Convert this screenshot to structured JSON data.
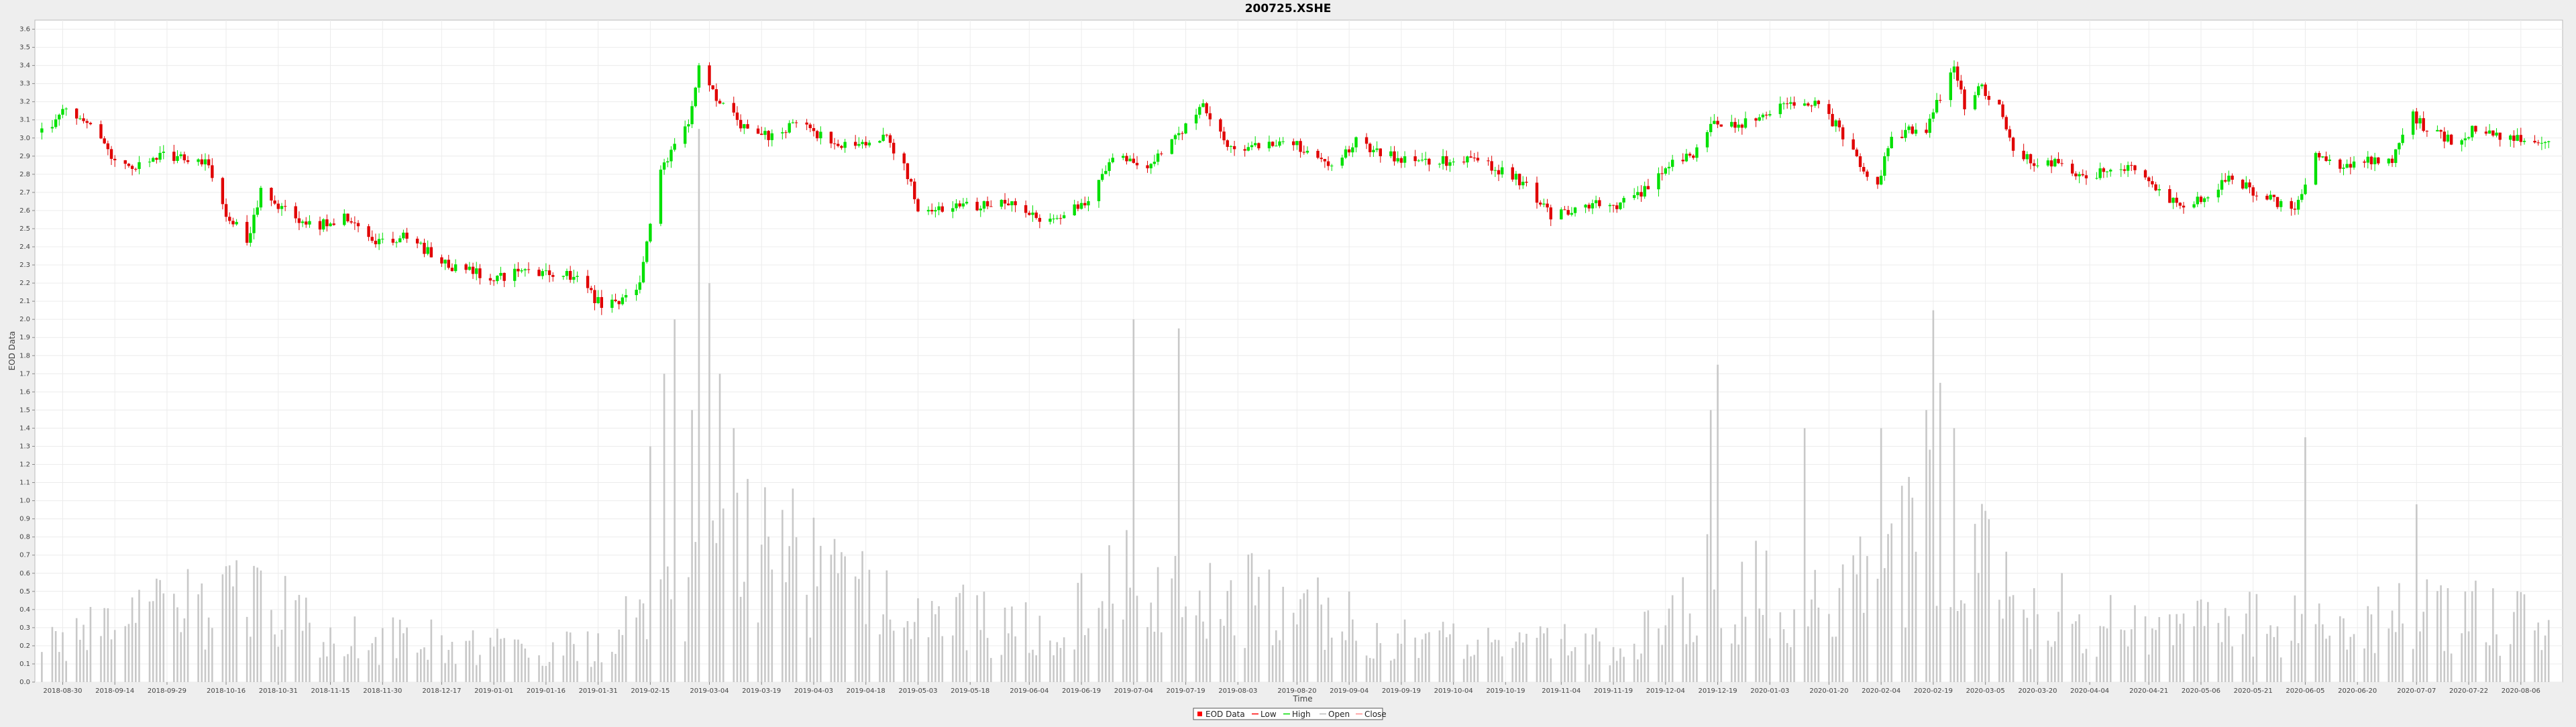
{
  "chart_data": {
    "type": "candlestick",
    "title": "200725.XSHE",
    "xlabel": "Time",
    "ylabel": "EOD Data",
    "ylim": [
      0.0,
      3.65
    ],
    "ytick_step": 0.1,
    "grid": true,
    "legend_position": "bottom-center",
    "x_tick_labels": [
      "2018-08-30",
      "2018-09-14",
      "2018-09-29",
      "2018-10-16",
      "2018-10-31",
      "2018-11-15",
      "2018-11-30",
      "2018-12-17",
      "2019-01-01",
      "2019-01-16",
      "2019-01-31",
      "2019-02-15",
      "2019-03-04",
      "2019-03-19",
      "2019-04-03",
      "2019-04-18",
      "2019-05-03",
      "2019-05-18",
      "2019-06-04",
      "2019-06-19",
      "2019-07-04",
      "2019-07-19",
      "2019-08-03",
      "2019-08-20",
      "2019-09-04",
      "2019-09-19",
      "2019-10-04",
      "2019-10-19",
      "2019-11-04",
      "2019-11-19",
      "2019-12-04",
      "2019-12-19",
      "2020-01-03",
      "2020-01-20",
      "2020-02-04",
      "2020-02-19",
      "2020-03-05",
      "2020-03-20",
      "2020-04-04",
      "2020-04-21",
      "2020-05-06",
      "2020-05-21",
      "2020-06-05",
      "2020-06-20",
      "2020-07-07",
      "2020-07-22",
      "2020-08-06"
    ],
    "legend": [
      {
        "name": "EOD Data",
        "color": "#ff0000",
        "kind": "box"
      },
      {
        "name": "Low",
        "color": "#ff0000",
        "kind": "line"
      },
      {
        "name": "High",
        "color": "#00dd00",
        "kind": "line"
      },
      {
        "name": "Open",
        "color": "#bbbbbb",
        "kind": "line"
      },
      {
        "name": "Close",
        "color": "#ff8c8c",
        "kind": "line"
      }
    ],
    "colors": {
      "up": "#00e000",
      "down": "#e00000",
      "volume": "#c8c8c8",
      "grid": "#ececec"
    },
    "anchors": [
      {
        "date": "2018-08-24",
        "price": 3.03
      },
      {
        "date": "2018-08-31",
        "price": 3.16
      },
      {
        "date": "2018-09-07",
        "price": 3.06
      },
      {
        "date": "2018-09-12",
        "price": 2.92
      },
      {
        "date": "2018-09-17",
        "price": 2.83
      },
      {
        "date": "2018-09-26",
        "price": 2.9
      },
      {
        "date": "2018-10-10",
        "price": 2.88
      },
      {
        "date": "2018-10-16",
        "price": 2.58
      },
      {
        "date": "2018-10-22",
        "price": 2.44
      },
      {
        "date": "2018-10-26",
        "price": 2.7
      },
      {
        "date": "2018-11-05",
        "price": 2.55
      },
      {
        "date": "2018-11-12",
        "price": 2.52
      },
      {
        "date": "2018-11-20",
        "price": 2.57
      },
      {
        "date": "2018-11-28",
        "price": 2.44
      },
      {
        "date": "2018-12-07",
        "price": 2.45
      },
      {
        "date": "2018-12-20",
        "price": 2.28
      },
      {
        "date": "2019-01-03",
        "price": 2.23
      },
      {
        "date": "2019-01-10",
        "price": 2.28
      },
      {
        "date": "2019-01-24",
        "price": 2.23
      },
      {
        "date": "2019-02-01",
        "price": 2.08
      },
      {
        "date": "2019-02-11",
        "price": 2.14
      },
      {
        "date": "2019-02-14",
        "price": 2.42
      },
      {
        "date": "2019-02-18",
        "price": 2.8
      },
      {
        "date": "2019-02-22",
        "price": 2.95
      },
      {
        "date": "2019-02-26",
        "price": 3.08
      },
      {
        "date": "2019-03-01",
        "price": 3.38
      },
      {
        "date": "2019-03-07",
        "price": 3.18
      },
      {
        "date": "2019-03-15",
        "price": 3.05
      },
      {
        "date": "2019-03-22",
        "price": 3.0
      },
      {
        "date": "2019-03-29",
        "price": 3.08
      },
      {
        "date": "2019-04-10",
        "price": 2.97
      },
      {
        "date": "2019-04-19",
        "price": 2.95
      },
      {
        "date": "2019-04-23",
        "price": 3.02
      },
      {
        "date": "2019-04-29",
        "price": 2.84
      },
      {
        "date": "2019-05-03",
        "price": 2.62
      },
      {
        "date": "2019-05-20",
        "price": 2.62
      },
      {
        "date": "2019-05-31",
        "price": 2.65
      },
      {
        "date": "2019-06-06",
        "price": 2.55
      },
      {
        "date": "2019-06-14",
        "price": 2.58
      },
      {
        "date": "2019-06-21",
        "price": 2.65
      },
      {
        "date": "2019-06-28",
        "price": 2.92
      },
      {
        "date": "2019-07-08",
        "price": 2.82
      },
      {
        "date": "2019-07-16",
        "price": 3.0
      },
      {
        "date": "2019-07-24",
        "price": 3.18
      },
      {
        "date": "2019-08-01",
        "price": 2.95
      },
      {
        "date": "2019-08-09",
        "price": 2.95
      },
      {
        "date": "2019-08-16",
        "price": 3.0
      },
      {
        "date": "2019-08-23",
        "price": 2.92
      },
      {
        "date": "2019-08-30",
        "price": 2.83
      },
      {
        "date": "2019-09-06",
        "price": 2.98
      },
      {
        "date": "2019-09-16",
        "price": 2.9
      },
      {
        "date": "2019-09-27",
        "price": 2.87
      },
      {
        "date": "2019-10-11",
        "price": 2.88
      },
      {
        "date": "2019-10-18",
        "price": 2.82
      },
      {
        "date": "2019-10-24",
        "price": 2.75
      },
      {
        "date": "2019-11-01",
        "price": 2.57
      },
      {
        "date": "2019-11-12",
        "price": 2.63
      },
      {
        "date": "2019-11-19",
        "price": 2.62
      },
      {
        "date": "2019-11-26",
        "price": 2.68
      },
      {
        "date": "2019-12-06",
        "price": 2.86
      },
      {
        "date": "2019-12-13",
        "price": 2.93
      },
      {
        "date": "2019-12-17",
        "price": 3.1
      },
      {
        "date": "2019-12-23",
        "price": 3.07
      },
      {
        "date": "2019-12-31",
        "price": 3.1
      },
      {
        "date": "2020-01-08",
        "price": 3.18
      },
      {
        "date": "2020-01-15",
        "price": 3.2
      },
      {
        "date": "2020-01-23",
        "price": 3.05
      },
      {
        "date": "2020-02-03",
        "price": 2.72
      },
      {
        "date": "2020-02-06",
        "price": 2.97
      },
      {
        "date": "2020-02-12",
        "price": 3.05
      },
      {
        "date": "2020-02-17",
        "price": 3.05
      },
      {
        "date": "2020-02-21",
        "price": 3.23
      },
      {
        "date": "2020-02-25",
        "price": 3.42
      },
      {
        "date": "2020-02-28",
        "price": 3.18
      },
      {
        "date": "2020-03-04",
        "price": 3.28
      },
      {
        "date": "2020-03-09",
        "price": 3.18
      },
      {
        "date": "2020-03-13",
        "price": 2.95
      },
      {
        "date": "2020-03-20",
        "price": 2.85
      },
      {
        "date": "2020-03-27",
        "price": 2.88
      },
      {
        "date": "2020-04-03",
        "price": 2.75
      },
      {
        "date": "2020-04-10",
        "price": 2.85
      },
      {
        "date": "2020-04-17",
        "price": 2.82
      },
      {
        "date": "2020-04-24",
        "price": 2.72
      },
      {
        "date": "2020-04-30",
        "price": 2.62
      },
      {
        "date": "2020-05-08",
        "price": 2.68
      },
      {
        "date": "2020-05-14",
        "price": 2.8
      },
      {
        "date": "2020-05-20",
        "price": 2.72
      },
      {
        "date": "2020-05-27",
        "price": 2.65
      },
      {
        "date": "2020-06-02",
        "price": 2.62
      },
      {
        "date": "2020-06-08",
        "price": 2.9
      },
      {
        "date": "2020-06-15",
        "price": 2.82
      },
      {
        "date": "2020-06-23",
        "price": 2.88
      },
      {
        "date": "2020-06-30",
        "price": 2.88
      },
      {
        "date": "2020-07-06",
        "price": 3.12
      },
      {
        "date": "2020-07-10",
        "price": 3.05
      },
      {
        "date": "2020-07-17",
        "price": 2.98
      },
      {
        "date": "2020-07-24",
        "price": 3.05
      },
      {
        "date": "2020-07-31",
        "price": 3.0
      },
      {
        "date": "2020-08-07",
        "price": 3.0
      },
      {
        "date": "2020-08-14",
        "price": 2.98
      }
    ],
    "volume_spikes": [
      {
        "date": "2019-02-15",
        "value": 1.3
      },
      {
        "date": "2019-02-19",
        "value": 1.7
      },
      {
        "date": "2019-02-22",
        "value": 2.0
      },
      {
        "date": "2019-02-27",
        "value": 1.5
      },
      {
        "date": "2019-03-01",
        "value": 3.05
      },
      {
        "date": "2019-03-04",
        "value": 2.2
      },
      {
        "date": "2019-03-07",
        "value": 1.7
      },
      {
        "date": "2019-03-11",
        "value": 1.4
      },
      {
        "date": "2019-07-04",
        "value": 2.0
      },
      {
        "date": "2019-07-17",
        "value": 1.95
      },
      {
        "date": "2019-12-17",
        "value": 1.5
      },
      {
        "date": "2019-12-19",
        "value": 1.75
      },
      {
        "date": "2020-01-13",
        "value": 1.4
      },
      {
        "date": "2020-02-04",
        "value": 1.4
      },
      {
        "date": "2020-02-17",
        "value": 1.5
      },
      {
        "date": "2020-02-19",
        "value": 2.05
      },
      {
        "date": "2020-02-21",
        "value": 1.65
      },
      {
        "date": "2020-02-25",
        "value": 1.4
      },
      {
        "date": "2020-06-05",
        "value": 1.35
      },
      {
        "date": "2020-07-07",
        "value": 0.98
      }
    ],
    "volume_base": [
      {
        "date": "2018-08-24",
        "value": 0.25
      },
      {
        "date": "2018-10-16",
        "value": 0.5
      },
      {
        "date": "2018-11-30",
        "value": 0.25
      },
      {
        "date": "2019-01-31",
        "value": 0.2
      },
      {
        "date": "2019-03-15",
        "value": 0.9
      },
      {
        "date": "2019-04-18",
        "value": 0.5
      },
      {
        "date": "2019-06-04",
        "value": 0.3
      },
      {
        "date": "2019-07-04",
        "value": 0.6
      },
      {
        "date": "2019-08-20",
        "value": 0.45
      },
      {
        "date": "2019-09-19",
        "value": 0.25
      },
      {
        "date": "2019-10-19",
        "value": 0.2
      },
      {
        "date": "2019-11-19",
        "value": 0.25
      },
      {
        "date": "2019-12-19",
        "value": 0.6
      },
      {
        "date": "2020-01-20",
        "value": 0.45
      },
      {
        "date": "2020-02-19",
        "value": 0.9
      },
      {
        "date": "2020-03-20",
        "value": 0.45
      },
      {
        "date": "2020-04-21",
        "value": 0.3
      },
      {
        "date": "2020-05-21",
        "value": 0.35
      },
      {
        "date": "2020-06-20",
        "value": 0.35
      },
      {
        "date": "2020-07-22",
        "value": 0.45
      },
      {
        "date": "2020-08-14",
        "value": 0.3
      }
    ]
  }
}
